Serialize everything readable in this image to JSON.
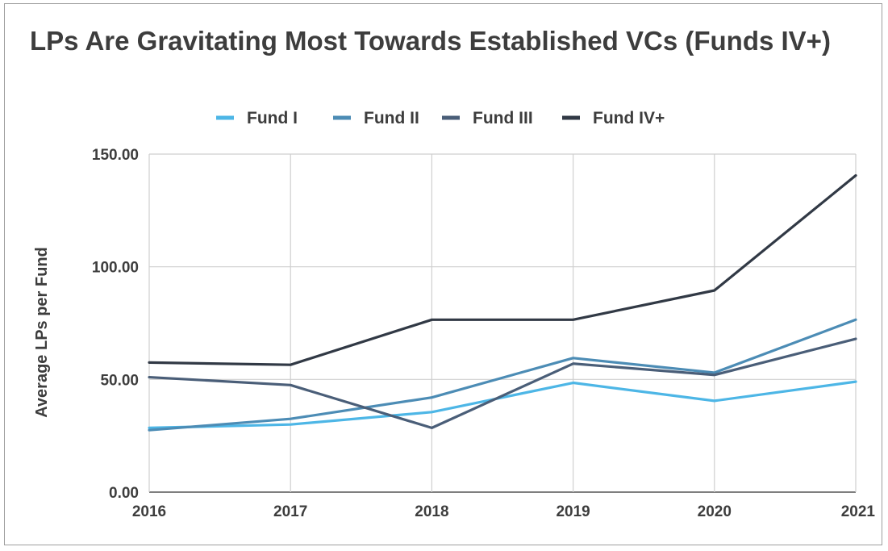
{
  "chart_data": {
    "type": "line",
    "title": "LPs Are Gravitating Most Towards Established VCs (Funds IV+)",
    "xlabel": "",
    "ylabel": "Average LPs per Fund",
    "categories": [
      "2016",
      "2017",
      "2018",
      "2019",
      "2020",
      "2021"
    ],
    "ylim": [
      0,
      150
    ],
    "yticks": [
      "0.00",
      "50.00",
      "100.00",
      "150.00"
    ],
    "ytick_values": [
      0,
      50,
      100,
      150
    ],
    "grid": true,
    "legend_position": "top-center",
    "series": [
      {
        "name": "Fund I",
        "color": "#4db6e6",
        "values": [
          28.5,
          30,
          35.5,
          48.5,
          40.5,
          49
        ]
      },
      {
        "name": "Fund II",
        "color": "#4c8cb5",
        "values": [
          27.5,
          32.5,
          42,
          59.5,
          53,
          76.5
        ]
      },
      {
        "name": "Fund III",
        "color": "#4a5e78",
        "values": [
          51,
          47.5,
          28.5,
          57,
          52,
          68
        ]
      },
      {
        "name": "Fund IV+",
        "color": "#313945",
        "values": [
          57.5,
          56.5,
          76.5,
          76.5,
          89.5,
          140.5
        ]
      }
    ]
  }
}
